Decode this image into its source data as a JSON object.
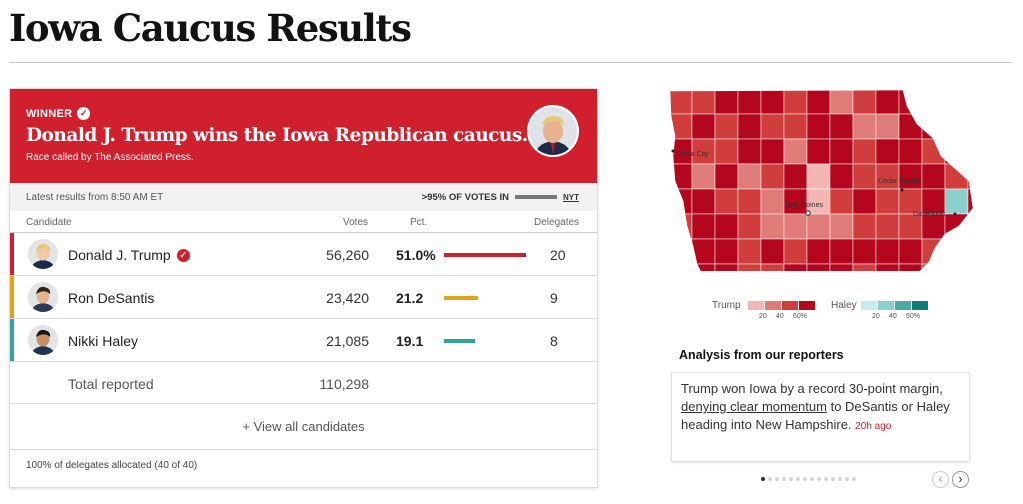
{
  "page": {
    "title": "Iowa Caucus Results"
  },
  "banner": {
    "winner_label": "WINNER",
    "headline": "Donald J. Trump wins the Iowa Republican caucus.",
    "subline": "Race called by The Associated Press.",
    "color": "#d0202e"
  },
  "meta": {
    "latest": "Latest results from 8:50 AM ET",
    "votes_in": ">95% OF VOTES IN",
    "source": "NYT"
  },
  "columns": {
    "candidate": "Candidate",
    "votes": "Votes",
    "pct": "Pct.",
    "delegates": "Delegates"
  },
  "candidates": [
    {
      "name": "Donald J. Trump",
      "votes": "56,260",
      "pct_label": "51.0%",
      "pct": 51.0,
      "delegates": "20",
      "color": "#d0202e",
      "winner": true
    },
    {
      "name": "Ron DeSantis",
      "votes": "23,420",
      "pct_label": "21.2",
      "pct": 21.2,
      "delegates": "9",
      "color": "#e0a31a",
      "winner": false
    },
    {
      "name": "Nikki Haley",
      "votes": "21,085",
      "pct_label": "19.1",
      "pct": 19.1,
      "delegates": "8",
      "color": "#31a59b",
      "winner": false
    }
  ],
  "total": {
    "label": "Total reported",
    "votes": "110,298"
  },
  "view_all": "+ View all candidates",
  "footnote": "100% of delegates allocated (40 of 40)",
  "map": {
    "cities": [
      {
        "name": "Sioux City"
      },
      {
        "name": "Cedar Rapids"
      },
      {
        "name": "Des Moines"
      },
      {
        "name": "Davenport"
      }
    ],
    "legend": {
      "trump_label": "Trump",
      "haley_label": "Haley",
      "trump_colors": [
        "#f3b6b3",
        "#e07c77",
        "#cf3d3d",
        "#b4061c"
      ],
      "haley_colors": [
        "#c4ecea",
        "#8bd0cc",
        "#4ea9a3",
        "#127d75"
      ],
      "ticks": [
        "20",
        "40",
        "60%"
      ]
    }
  },
  "analysis": {
    "title": "Analysis from our reporters",
    "text_before": "Trump won Iowa by a record 30-point margin, ",
    "link_text": "denying clear momentum",
    "text_after": " to DeSantis or Haley heading into New Hampshire. ",
    "time": "20h ago",
    "page_count": 14,
    "active_page": 1,
    "prev_glyph": "‹",
    "next_glyph": "›"
  }
}
